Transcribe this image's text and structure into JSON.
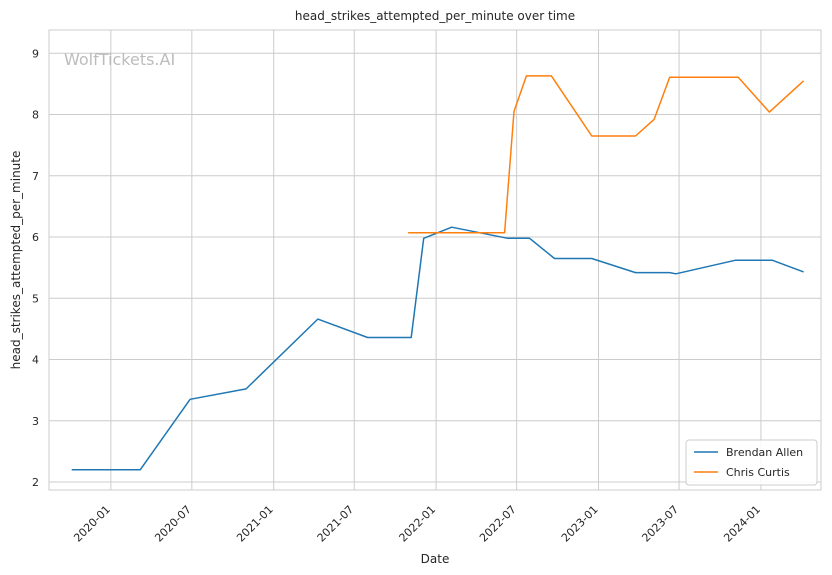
{
  "chart_data": {
    "type": "line",
    "title": "head_strikes_attempted_per_minute over time",
    "xlabel": "Date",
    "ylabel": "head_strikes_attempted_per_minute",
    "xlim": [
      "2019-08-15",
      "2024-05-15"
    ],
    "ylim": [
      1.87,
      9.38
    ],
    "x_ticks": [
      "2020-01",
      "2020-07",
      "2021-01",
      "2021-07",
      "2022-01",
      "2022-07",
      "2023-01",
      "2023-07",
      "2024-01"
    ],
    "y_ticks": [
      2,
      3,
      4,
      5,
      6,
      7,
      8,
      9
    ],
    "grid": true,
    "legend_position": "lower-right",
    "watermark": "WolfTickets.AI",
    "series": [
      {
        "name": "Brendan Allen",
        "color": "#1f77b4",
        "points": [
          [
            "2019-10-05",
            2.2
          ],
          [
            "2020-03-07",
            2.2
          ],
          [
            "2020-06-27",
            3.35
          ],
          [
            "2020-10-31",
            3.52
          ],
          [
            "2021-04-10",
            4.66
          ],
          [
            "2021-07-31",
            4.36
          ],
          [
            "2021-11-06",
            4.36
          ],
          [
            "2021-12-04",
            5.98
          ],
          [
            "2022-02-05",
            6.16
          ],
          [
            "2022-06-11",
            5.98
          ],
          [
            "2022-07-30",
            5.98
          ],
          [
            "2022-09-24",
            5.65
          ],
          [
            "2022-12-17",
            5.65
          ],
          [
            "2023-03-25",
            5.42
          ],
          [
            "2023-06-10",
            5.42
          ],
          [
            "2023-06-24",
            5.4
          ],
          [
            "2023-11-04",
            5.62
          ],
          [
            "2024-01-27",
            5.62
          ],
          [
            "2024-04-06",
            5.43
          ]
        ]
      },
      {
        "name": "Chris Curtis",
        "color": "#ff7f0e",
        "points": [
          [
            "2021-10-30",
            6.07
          ],
          [
            "2022-06-04",
            6.07
          ],
          [
            "2022-06-25",
            8.05
          ],
          [
            "2022-07-23",
            8.63
          ],
          [
            "2022-09-17",
            8.63
          ],
          [
            "2022-12-17",
            7.65
          ],
          [
            "2023-03-25",
            7.65
          ],
          [
            "2023-05-06",
            7.92
          ],
          [
            "2023-06-10",
            8.61
          ],
          [
            "2023-11-11",
            8.61
          ],
          [
            "2024-01-20",
            8.04
          ],
          [
            "2024-04-06",
            8.55
          ]
        ]
      }
    ]
  }
}
